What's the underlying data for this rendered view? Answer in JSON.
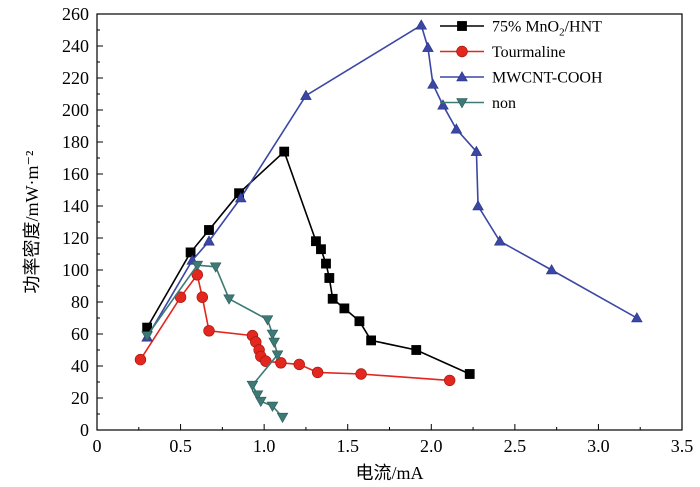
{
  "chart_data": {
    "type": "line",
    "xlabel": "电流/mA",
    "ylabel": "功率密度/mW·m⁻²",
    "xlim": [
      0,
      3.5
    ],
    "ylim": [
      0,
      260
    ],
    "xticks": [
      0,
      0.5,
      1.0,
      1.5,
      2.0,
      2.5,
      3.0,
      3.5
    ],
    "xtick_labels": [
      "0",
      "0.5",
      "1.0",
      "1.5",
      "2.0",
      "2.5",
      "3.0",
      "3.5"
    ],
    "yticks": [
      0,
      20,
      40,
      60,
      80,
      100,
      120,
      140,
      160,
      180,
      200,
      220,
      240,
      260
    ],
    "ytick_labels": [
      "0",
      "20",
      "40",
      "60",
      "80",
      "100",
      "120",
      "140",
      "160",
      "180",
      "200",
      "220",
      "240",
      "260"
    ],
    "grid": false,
    "legend_position": "top-right",
    "series": [
      {
        "name": "75% MnO2/HNT",
        "name_main": "75% MnO",
        "name_sub": "2",
        "name_tail": "/HNT",
        "color": "#000000",
        "marker": "square",
        "x": [
          0.3,
          0.56,
          0.67,
          0.85,
          1.12,
          1.31,
          1.34,
          1.37,
          1.39,
          1.41,
          1.48,
          1.57,
          1.64,
          1.91,
          2.23
        ],
        "y": [
          64,
          111,
          125,
          148,
          174,
          118,
          113,
          104,
          95,
          82,
          76,
          68,
          56,
          50,
          35
        ]
      },
      {
        "name": "Tourmaline",
        "color": "#e3261e",
        "marker": "circle",
        "x": [
          0.26,
          0.5,
          0.6,
          0.63,
          0.67,
          0.93,
          0.95,
          0.97,
          0.98,
          1.01,
          1.1,
          1.21,
          1.32,
          1.58,
          2.11
        ],
        "y": [
          44,
          83,
          97,
          83,
          62,
          59,
          55,
          50,
          46,
          43,
          42,
          41,
          36,
          35,
          31
        ]
      },
      {
        "name": "MWCNT-COOH",
        "color": "#3b47a5",
        "marker": "triangle-up",
        "x": [
          0.3,
          0.57,
          0.67,
          0.86,
          1.25,
          1.94,
          1.98,
          2.01,
          2.07,
          2.15,
          2.27,
          2.28,
          2.41,
          2.72,
          3.23
        ],
        "y": [
          58,
          106,
          118,
          145,
          209,
          253,
          239,
          216,
          203,
          188,
          174,
          140,
          118,
          100,
          70
        ]
      },
      {
        "name": "non",
        "color": "#3d7a76",
        "marker": "triangle-down",
        "x": [
          0.3,
          0.6,
          0.71,
          0.79,
          1.02,
          1.05,
          1.06,
          1.08,
          0.93,
          0.96,
          0.98,
          1.05,
          1.11
        ],
        "y": [
          59,
          103,
          102,
          82,
          69,
          60,
          55,
          47,
          28,
          22,
          18,
          15,
          8
        ]
      }
    ]
  }
}
